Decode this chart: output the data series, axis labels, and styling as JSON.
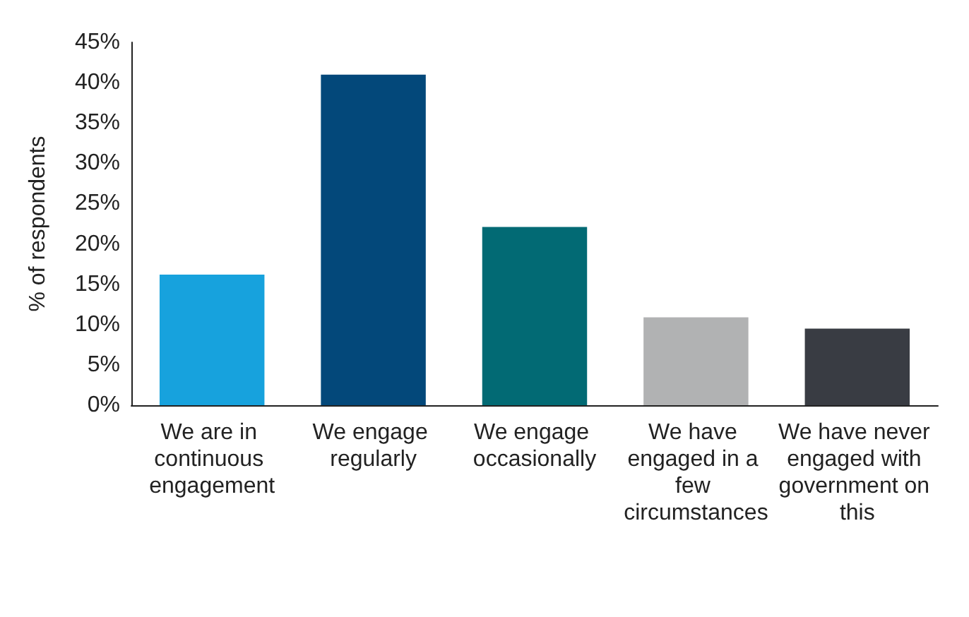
{
  "chart_data": {
    "type": "bar",
    "ylabel": "% of respondents",
    "categories": [
      "We are in continuous engagement",
      "We engage regularly",
      "We engage occasionally",
      "We have engaged in a few circumstances",
      "We have never engaged with government on this"
    ],
    "values": [
      16.2,
      41.0,
      22.1,
      10.9,
      9.5
    ],
    "colors": [
      "#17a2dd",
      "#03487a",
      "#026a74",
      "#b1b2b3",
      "#393c43"
    ],
    "ylim": [
      0,
      45
    ],
    "yticks": [
      {
        "value": 0,
        "label": "0%"
      },
      {
        "value": 5,
        "label": "5%"
      },
      {
        "value": 10,
        "label": "10%"
      },
      {
        "value": 15,
        "label": "15%"
      },
      {
        "value": 20,
        "label": "20%"
      },
      {
        "value": 25,
        "label": "25%"
      },
      {
        "value": 30,
        "label": "30%"
      },
      {
        "value": 35,
        "label": "35%"
      },
      {
        "value": 40,
        "label": "40%"
      },
      {
        "value": 45,
        "label": "45%"
      }
    ],
    "grid": false
  }
}
